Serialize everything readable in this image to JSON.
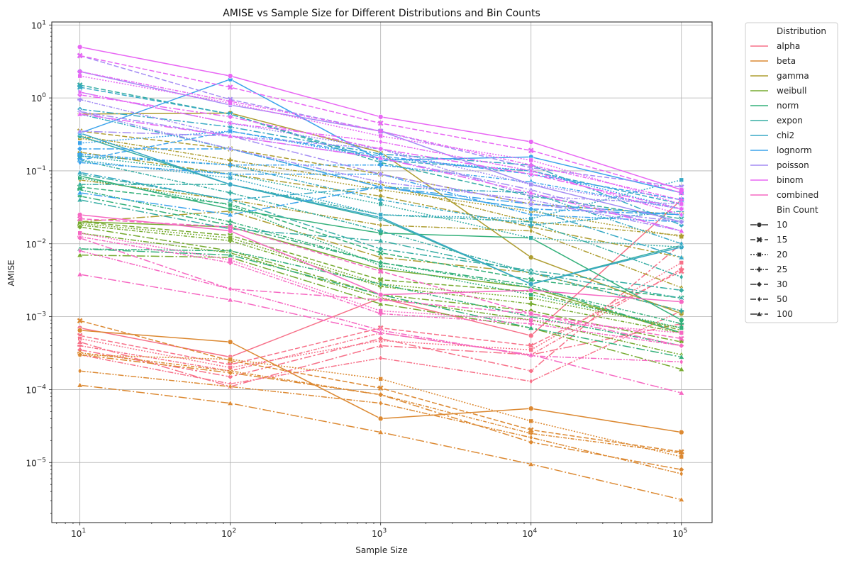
{
  "chart_data": {
    "type": "line",
    "title": "AMISE vs Sample Size for Different Distributions and Bin Counts",
    "xlabel": "Sample Size",
    "ylabel": "AMISE",
    "xscale": "log",
    "yscale": "log",
    "x": [
      10,
      100,
      1000,
      10000,
      100000
    ],
    "x_tick_labels": [
      {
        "base": "10",
        "exp": "1"
      },
      {
        "base": "10",
        "exp": "2"
      },
      {
        "base": "10",
        "exp": "3"
      },
      {
        "base": "10",
        "exp": "4"
      },
      {
        "base": "10",
        "exp": "5"
      }
    ],
    "y_tick_labels": [
      {
        "base": "10",
        "exp": "−5"
      },
      {
        "base": "10",
        "exp": "−4"
      },
      {
        "base": "10",
        "exp": "−3"
      },
      {
        "base": "10",
        "exp": "−2"
      },
      {
        "base": "10",
        "exp": "−1"
      },
      {
        "base": "10",
        "exp": "0"
      },
      {
        "base": "10",
        "exp": "1"
      }
    ],
    "xlim": [
      6.5,
      160000
    ],
    "ylim": [
      1.5e-06,
      11
    ],
    "grid": true,
    "legend_placement": "outside-right",
    "legend": {
      "hue_title": "Distribution",
      "style_title": "Bin Count",
      "distributions": [
        {
          "name": "alpha",
          "color": "#f77189"
        },
        {
          "name": "beta",
          "color": "#dc8932"
        },
        {
          "name": "gamma",
          "color": "#ae9d31"
        },
        {
          "name": "weibull",
          "color": "#77ab31"
        },
        {
          "name": "norm",
          "color": "#33b07a"
        },
        {
          "name": "expon",
          "color": "#36ada4"
        },
        {
          "name": "chi2",
          "color": "#38a9c5"
        },
        {
          "name": "lognorm",
          "color": "#3ba3ec"
        },
        {
          "name": "poisson",
          "color": "#a48cf4"
        },
        {
          "name": "binom",
          "color": "#e866f4"
        },
        {
          "name": "combined",
          "color": "#f668c2"
        }
      ],
      "bins": [
        {
          "label": "10",
          "dash": "",
          "marker": "circle"
        },
        {
          "label": "15",
          "dash": "7,3",
          "marker": "x"
        },
        {
          "label": "20",
          "dash": "2,2",
          "marker": "square"
        },
        {
          "label": "25",
          "dash": "5,2,1.5,2",
          "marker": "plus"
        },
        {
          "label": "30",
          "dash": "10,3,3,3",
          "marker": "diamond"
        },
        {
          "label": "50",
          "dash": "8,2,2,2,2,2",
          "marker": "thin-diamond"
        },
        {
          "label": "100",
          "dash": "12,3,2,3",
          "marker": "triangle"
        }
      ]
    },
    "series": [
      {
        "name": "alpha",
        "bins": "10",
        "values": [
          0.0007,
          0.00028,
          0.0018,
          0.00055,
          0.04
        ]
      },
      {
        "name": "alpha",
        "bins": "15",
        "values": [
          0.00055,
          0.00022,
          0.0007,
          0.0004,
          0.0042
        ]
      },
      {
        "name": "alpha",
        "bins": "20",
        "values": [
          0.0005,
          0.0002,
          0.00047,
          0.00035,
          0.0055
        ]
      },
      {
        "name": "alpha",
        "bins": "25",
        "values": [
          0.0004,
          0.00018,
          0.0006,
          0.0003,
          0.0045
        ]
      },
      {
        "name": "alpha",
        "bins": "30",
        "values": [
          0.00035,
          0.00015,
          0.0005,
          0.00018,
          0.01
        ]
      },
      {
        "name": "alpha",
        "bins": "50",
        "values": [
          0.0003,
          0.00012,
          0.00027,
          0.00013,
          0.0012
        ]
      },
      {
        "name": "alpha",
        "bins": "100",
        "values": [
          0.00045,
          0.00011,
          0.0004,
          0.0003,
          0.0008
        ]
      },
      {
        "name": "beta",
        "bins": "10",
        "values": [
          0.00065,
          0.00045,
          4e-05,
          5.5e-05,
          2.6e-05
        ]
      },
      {
        "name": "beta",
        "bins": "15",
        "values": [
          0.00088,
          0.00025,
          0.000105,
          2.8e-05,
          1.4e-05
        ]
      },
      {
        "name": "beta",
        "bins": "20",
        "values": [
          0.0003,
          0.00026,
          0.00014,
          3.7e-05,
          1.2e-05
        ]
      },
      {
        "name": "beta",
        "bins": "25",
        "values": [
          0.00032,
          0.00018,
          8.5e-05,
          2.5e-05,
          1.35e-05
        ]
      },
      {
        "name": "beta",
        "bins": "30",
        "values": [
          0.0003,
          0.00017,
          8.5e-05,
          1.9e-05,
          8e-06
        ]
      },
      {
        "name": "beta",
        "bins": "50",
        "values": [
          0.00018,
          0.00011,
          6.5e-05,
          2.2e-05,
          7e-06
        ]
      },
      {
        "name": "beta",
        "bins": "100",
        "values": [
          0.000115,
          6.5e-05,
          2.6e-05,
          9.5e-06,
          3.1e-06
        ]
      },
      {
        "name": "gamma",
        "bins": "10",
        "values": [
          0.6,
          0.62,
          0.18,
          0.0065,
          0.0011
        ]
      },
      {
        "name": "gamma",
        "bins": "15",
        "values": [
          0.35,
          0.2,
          0.09,
          0.035,
          0.025
        ]
      },
      {
        "name": "gamma",
        "bins": "20",
        "values": [
          0.28,
          0.12,
          0.055,
          0.028,
          0.0125
        ]
      },
      {
        "name": "gamma",
        "bins": "25",
        "values": [
          0.3,
          0.14,
          0.065,
          0.02,
          0.013
        ]
      },
      {
        "name": "gamma",
        "bins": "30",
        "values": [
          0.18,
          0.09,
          0.045,
          0.017,
          0.0065
        ]
      },
      {
        "name": "gamma",
        "bins": "50",
        "values": [
          0.075,
          0.04,
          0.018,
          0.015,
          0.0025
        ]
      },
      {
        "name": "gamma",
        "bins": "100",
        "values": [
          0.02,
          0.028,
          0.0065,
          0.004,
          0.0012
        ]
      },
      {
        "name": "weibull",
        "bins": "10",
        "values": [
          0.02,
          0.017,
          0.0045,
          0.0025,
          0.0006
        ]
      },
      {
        "name": "weibull",
        "bins": "15",
        "values": [
          0.02,
          0.013,
          0.0032,
          0.0022,
          0.00065
        ]
      },
      {
        "name": "weibull",
        "bins": "20",
        "values": [
          0.019,
          0.012,
          0.0028,
          0.0018,
          0.0007
        ]
      },
      {
        "name": "weibull",
        "bins": "25",
        "values": [
          0.018,
          0.011,
          0.0026,
          0.0015,
          0.0006
        ]
      },
      {
        "name": "weibull",
        "bins": "30",
        "values": [
          0.017,
          0.008,
          0.002,
          0.0012,
          0.00045
        ]
      },
      {
        "name": "weibull",
        "bins": "50",
        "values": [
          0.014,
          0.0075,
          0.0018,
          0.0009,
          0.0003
        ]
      },
      {
        "name": "weibull",
        "bins": "100",
        "values": [
          0.007,
          0.0065,
          0.0015,
          0.0007,
          0.00019
        ]
      },
      {
        "name": "norm",
        "bins": "10",
        "values": [
          0.085,
          0.03,
          0.014,
          0.012,
          0.0009
        ]
      },
      {
        "name": "norm",
        "bins": "15",
        "values": [
          0.06,
          0.035,
          0.0075,
          0.0032,
          0.0018
        ]
      },
      {
        "name": "norm",
        "bins": "20",
        "values": [
          0.08,
          0.034,
          0.005,
          0.002,
          0.0007
        ]
      },
      {
        "name": "norm",
        "bins": "25",
        "values": [
          0.055,
          0.02,
          0.0055,
          0.0025,
          0.0008
        ]
      },
      {
        "name": "norm",
        "bins": "30",
        "values": [
          0.045,
          0.018,
          0.0055,
          0.0027,
          0.0006
        ]
      },
      {
        "name": "norm",
        "bins": "50",
        "values": [
          0.0085,
          0.008,
          0.0028,
          0.001,
          0.0004
        ]
      },
      {
        "name": "norm",
        "bins": "100",
        "values": [
          0.0085,
          0.007,
          0.002,
          0.0007,
          0.00028
        ]
      },
      {
        "name": "expon",
        "bins": "10",
        "values": [
          0.3,
          0.065,
          0.022,
          0.0028,
          0.0095
        ]
      },
      {
        "name": "expon",
        "bins": "15",
        "values": [
          1.5,
          0.6,
          0.13,
          0.045,
          0.022
        ]
      },
      {
        "name": "expon",
        "bins": "20",
        "values": [
          0.16,
          0.09,
          0.035,
          0.012,
          0.009
        ]
      },
      {
        "name": "expon",
        "bins": "25",
        "values": [
          0.14,
          0.05,
          0.015,
          0.004,
          0.0012
        ]
      },
      {
        "name": "expon",
        "bins": "30",
        "values": [
          0.09,
          0.04,
          0.0085,
          0.0043,
          0.0023
        ]
      },
      {
        "name": "expon",
        "bins": "50",
        "values": [
          0.065,
          0.065,
          0.025,
          0.02,
          0.0035
        ]
      },
      {
        "name": "expon",
        "bins": "100",
        "values": [
          0.04,
          0.016,
          0.011,
          0.004,
          0.0018
        ]
      },
      {
        "name": "chi2",
        "bins": "10",
        "values": [
          0.33,
          0.065,
          0.023,
          0.0028,
          0.009
        ]
      },
      {
        "name": "chi2",
        "bins": "15",
        "values": [
          1.4,
          0.6,
          0.14,
          0.1,
          0.035
        ]
      },
      {
        "name": "chi2",
        "bins": "20",
        "values": [
          0.14,
          0.08,
          0.025,
          0.022,
          0.075
        ]
      },
      {
        "name": "chi2",
        "bins": "25",
        "values": [
          0.16,
          0.12,
          0.04,
          0.018,
          0.028
        ]
      },
      {
        "name": "chi2",
        "bins": "30",
        "values": [
          0.7,
          0.4,
          0.17,
          0.12,
          0.018
        ]
      },
      {
        "name": "chi2",
        "bins": "50",
        "values": [
          0.6,
          0.2,
          0.06,
          0.05,
          0.01
        ]
      },
      {
        "name": "chi2",
        "bins": "100",
        "values": [
          0.095,
          0.04,
          0.06,
          0.03,
          0.0065
        ]
      },
      {
        "name": "lognorm",
        "bins": "10",
        "values": [
          0.33,
          1.8,
          0.14,
          0.155,
          0.05
        ]
      },
      {
        "name": "lognorm",
        "bins": "15",
        "values": [
          0.14,
          0.35,
          0.16,
          0.09,
          0.04
        ]
      },
      {
        "name": "lognorm",
        "bins": "20",
        "values": [
          0.24,
          0.35,
          0.15,
          0.1,
          0.03
        ]
      },
      {
        "name": "lognorm",
        "bins": "25",
        "values": [
          0.17,
          0.12,
          0.12,
          0.07,
          0.03
        ]
      },
      {
        "name": "lognorm",
        "bins": "30",
        "values": [
          0.2,
          0.2,
          0.06,
          0.03,
          0.025
        ]
      },
      {
        "name": "lognorm",
        "bins": "50",
        "values": [
          0.13,
          0.09,
          0.09,
          0.025,
          0.02
        ]
      },
      {
        "name": "lognorm",
        "bins": "100",
        "values": [
          0.05,
          0.025,
          0.06,
          0.035,
          0.025
        ]
      },
      {
        "name": "poisson",
        "bins": "10",
        "values": [
          2.3,
          0.8,
          0.35,
          0.065,
          0.02
        ]
      },
      {
        "name": "poisson",
        "bins": "15",
        "values": [
          3.8,
          0.95,
          0.35,
          0.11,
          0.06
        ]
      },
      {
        "name": "poisson",
        "bins": "20",
        "values": [
          1.2,
          0.45,
          0.2,
          0.065,
          0.03
        ]
      },
      {
        "name": "poisson",
        "bins": "25",
        "values": [
          0.95,
          0.3,
          0.2,
          0.045,
          0.035
        ]
      },
      {
        "name": "poisson",
        "bins": "30",
        "values": [
          0.65,
          0.3,
          0.09,
          0.035,
          0.02
        ]
      },
      {
        "name": "poisson",
        "bins": "50",
        "values": [
          0.65,
          0.2,
          0.07,
          0.04,
          0.015
        ]
      },
      {
        "name": "poisson",
        "bins": "100",
        "values": [
          0.35,
          0.3,
          0.15,
          0.055,
          0.015
        ]
      },
      {
        "name": "binom",
        "bins": "10",
        "values": [
          5.0,
          2.0,
          0.55,
          0.25,
          0.055
        ]
      },
      {
        "name": "binom",
        "bins": "15",
        "values": [
          3.8,
          1.4,
          0.45,
          0.19,
          0.05
        ]
      },
      {
        "name": "binom",
        "bins": "20",
        "values": [
          2.0,
          0.85,
          0.3,
          0.14,
          0.035
        ]
      },
      {
        "name": "binom",
        "bins": "25",
        "values": [
          2.3,
          0.9,
          0.35,
          0.12,
          0.04
        ]
      },
      {
        "name": "binom",
        "bins": "30",
        "values": [
          1.1,
          0.55,
          0.2,
          0.09,
          0.03
        ]
      },
      {
        "name": "binom",
        "bins": "50",
        "values": [
          1.2,
          0.45,
          0.25,
          0.1,
          0.025
        ]
      },
      {
        "name": "binom",
        "bins": "100",
        "values": [
          0.6,
          0.3,
          0.15,
          0.05,
          0.015
        ]
      },
      {
        "name": "combined",
        "bins": "10",
        "values": [
          0.025,
          0.015,
          0.002,
          0.0023,
          0.0016
        ]
      },
      {
        "name": "combined",
        "bins": "15",
        "values": [
          0.022,
          0.017,
          0.0042,
          0.0011,
          0.0005
        ]
      },
      {
        "name": "combined",
        "bins": "20",
        "values": [
          0.014,
          0.006,
          0.0012,
          0.0009,
          0.0006
        ]
      },
      {
        "name": "combined",
        "bins": "25",
        "values": [
          0.0125,
          0.0055,
          0.0011,
          0.0008,
          0.0004
        ]
      },
      {
        "name": "combined",
        "bins": "30",
        "values": [
          0.012,
          0.0024,
          0.0017,
          0.0011,
          0.0004
        ]
      },
      {
        "name": "combined",
        "bins": "50",
        "values": [
          0.008,
          0.0024,
          0.00065,
          0.00029,
          0.00024
        ]
      },
      {
        "name": "combined",
        "bins": "100",
        "values": [
          0.0038,
          0.0017,
          0.0006,
          0.0003,
          9e-05
        ]
      }
    ]
  }
}
